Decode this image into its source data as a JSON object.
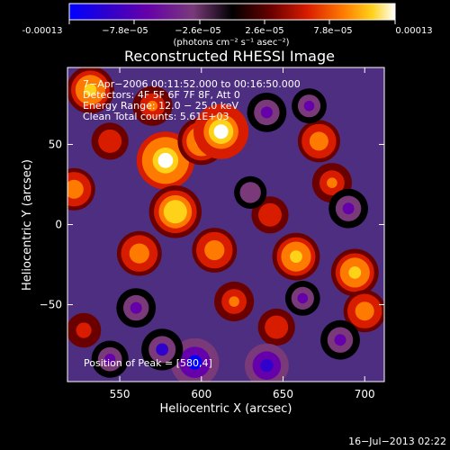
{
  "colorbar": {
    "tick_labels": [
      "-0.00013",
      "−7.8e−05",
      "−2.6e−05",
      "2.6e−05",
      "7.8e−05",
      "0.00013"
    ],
    "unit_label": "(photons cm⁻² s⁻¹ asec⁻²)",
    "colors": [
      "#0000ff",
      "#3000cc",
      "#6600aa",
      "#7a3a7a",
      "#000000",
      "#6a0000",
      "#d81c00",
      "#ff7a00",
      "#ffd21a",
      "#ffffff"
    ]
  },
  "chart_data": {
    "type": "heatmap",
    "title": "Reconstructed RHESSI Image",
    "xlabel": "Heliocentric X (arcsec)",
    "ylabel": "Heliocentric Y (arcsec)",
    "xlim": [
      518,
      712
    ],
    "ylim": [
      -98,
      98
    ],
    "x_ticks": [
      550,
      600,
      650,
      700
    ],
    "y_ticks": [
      -50,
      0,
      50
    ],
    "vmin": -0.00013,
    "vmax": 0.00013,
    "annotations": [
      "7−Apr−2006 00:11:52.000 to 00:16:50.000",
      "Detectors: 4F 5F 6F 7F 8F, Att 0",
      "Energy Range: 12.0 − 25.0 keV",
      "Clean     Total counts: 5.61E+03"
    ],
    "peak_note": "Position of Peak = [580,4]",
    "blobs": [
      {
        "x": 532,
        "y": 84,
        "value": 9e-05
      },
      {
        "x": 570,
        "y": 74,
        "value": 6e-05
      },
      {
        "x": 578,
        "y": 40,
        "value": 0.00013
      },
      {
        "x": 584,
        "y": 8,
        "value": 0.00011
      },
      {
        "x": 562,
        "y": -18,
        "value": 8e-05
      },
      {
        "x": 528,
        "y": -66,
        "value": 4e-05
      },
      {
        "x": 600,
        "y": 52,
        "value": 9e-05
      },
      {
        "x": 612,
        "y": 58,
        "value": 0.00012
      },
      {
        "x": 608,
        "y": -16,
        "value": 8e-05
      },
      {
        "x": 620,
        "y": -48,
        "value": 6e-05
      },
      {
        "x": 642,
        "y": 6,
        "value": 5e-05
      },
      {
        "x": 658,
        "y": -20,
        "value": 9e-05
      },
      {
        "x": 672,
        "y": 52,
        "value": 7e-05
      },
      {
        "x": 680,
        "y": 26,
        "value": 6e-05
      },
      {
        "x": 694,
        "y": -30,
        "value": 9e-05
      },
      {
        "x": 700,
        "y": -54,
        "value": 7e-05
      },
      {
        "x": 646,
        "y": -64,
        "value": 5e-05
      },
      {
        "x": 522,
        "y": 22,
        "value": 7e-05
      },
      {
        "x": 544,
        "y": 52,
        "value": 5e-05
      },
      {
        "x": 640,
        "y": 70,
        "value": -8e-05
      },
      {
        "x": 666,
        "y": 74,
        "value": -6e-05
      },
      {
        "x": 690,
        "y": 10,
        "value": -8e-05
      },
      {
        "x": 596,
        "y": -86,
        "value": -0.00012
      },
      {
        "x": 640,
        "y": -88,
        "value": -0.0001
      },
      {
        "x": 685,
        "y": -72,
        "value": -8e-05
      },
      {
        "x": 560,
        "y": -52,
        "value": -8e-05
      },
      {
        "x": 576,
        "y": -78,
        "value": -9e-05
      },
      {
        "x": 630,
        "y": 20,
        "value": -5e-05
      },
      {
        "x": 544,
        "y": -84,
        "value": -7e-05
      },
      {
        "x": 662,
        "y": -46,
        "value": -6e-05
      }
    ]
  },
  "footer": {
    "timestamp": "16−Jul−2013 02:22"
  }
}
